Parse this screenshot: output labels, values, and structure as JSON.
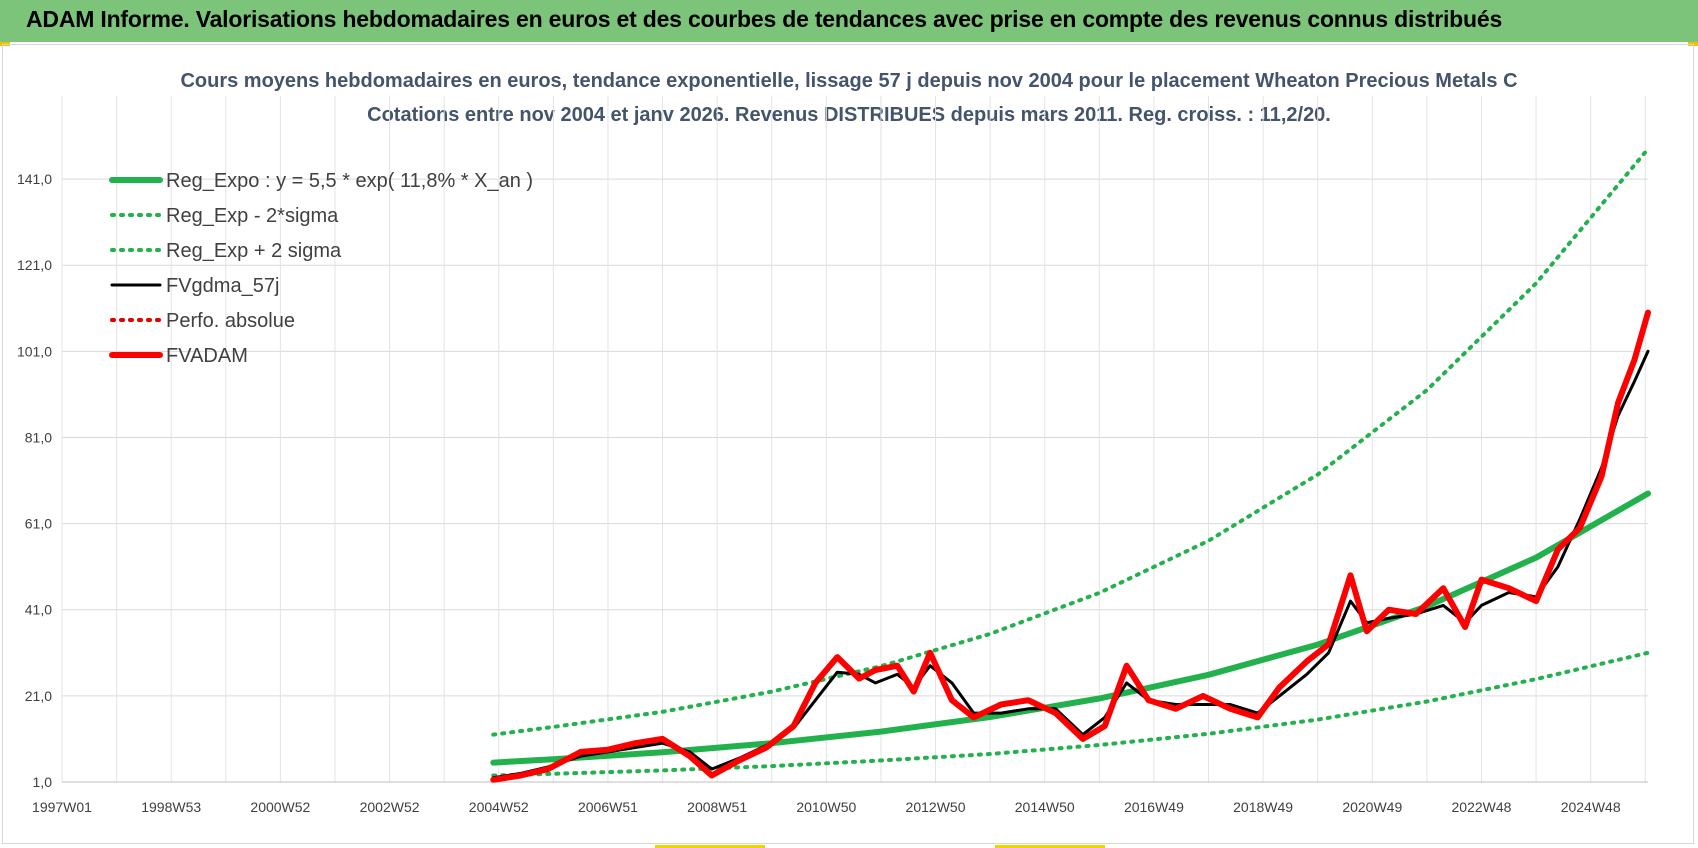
{
  "header": {
    "title": "ADAM Informe. Valorisations hebdomadaires en euros et des courbes de tendances avec prise en compte des revenus connus distribués"
  },
  "chart_data": {
    "type": "line",
    "title": "Cours moyens hebdomadaires en euros, tendance exponentielle, lissage 57 j depuis nov 2004 pour le placement Wheaton Precious Metals C",
    "subtitle": "Cotations entre nov 2004 et janv 2026. Revenus DISTRIBUES depuis mars 2011. Reg. croiss. : 11,2/20.",
    "x_tick_labels": [
      "1997W01",
      "1998W53",
      "2000W52",
      "2002W52",
      "2004W52",
      "2006W51",
      "2008W51",
      "2010W50",
      "2012W50",
      "2014W50",
      "2016W49",
      "2018W49",
      "2020W49",
      "2022W48",
      "2024W48"
    ],
    "x_tick_years": [
      1997.0,
      1999.0,
      2001.0,
      2003.0,
      2005.0,
      2007.0,
      2009.0,
      2011.0,
      2013.0,
      2015.0,
      2017.0,
      2019.0,
      2021.0,
      2023.0,
      2025.0
    ],
    "xlim": [
      1997.0,
      2026.05
    ],
    "y_ticks": [
      "1,0",
      "21,0",
      "41,0",
      "61,0",
      "81,0",
      "101,0",
      "121,0",
      "141,0"
    ],
    "ylim": [
      1,
      141
    ],
    "grid": true,
    "legend_position": "top-left",
    "legend": [
      {
        "name": "Reg_Expo : y = 5,5 * exp( 11,8% *  X_an )",
        "color": "#22b14c",
        "style": "solid-thick"
      },
      {
        "name": "Reg_Exp - 2*sigma",
        "color": "#22b14c",
        "style": "dotted"
      },
      {
        "name": "Reg_Exp + 2 sigma",
        "color": "#22b14c",
        "style": "dotted"
      },
      {
        "name": "FVgdma_57j",
        "color": "#000000",
        "style": "solid"
      },
      {
        "name": "Perfo. absolue",
        "color": "#e00000",
        "style": "dotted"
      },
      {
        "name": "FVADAM",
        "color": "#ff0000",
        "style": "solid-thick"
      }
    ],
    "series": [
      {
        "name": "Reg_Expo : y = 5,5 * exp( 11,8% *  X_an )",
        "x": [
          2004.9,
          2006.0,
          2008.0,
          2010.0,
          2012.0,
          2014.0,
          2016.0,
          2018.0,
          2020.0,
          2022.0,
          2024.0,
          2026.05
        ],
        "y": [
          5.5,
          6.3,
          7.9,
          10.0,
          12.7,
          16.1,
          20.4,
          25.9,
          32.9,
          41.8,
          53.1,
          68.0
        ]
      },
      {
        "name": "Reg_Exp - 2*sigma",
        "x": [
          2004.9,
          2006.0,
          2008.0,
          2010.0,
          2012.0,
          2014.0,
          2016.0,
          2018.0,
          2020.0,
          2022.0,
          2024.0,
          2026.05
        ],
        "y": [
          2.5,
          2.9,
          3.7,
          4.7,
          6.0,
          7.5,
          9.6,
          12.2,
          15.5,
          19.7,
          24.9,
          31.0
        ]
      },
      {
        "name": "Reg_Exp + 2 sigma",
        "x": [
          2004.9,
          2006.0,
          2008.0,
          2010.0,
          2012.0,
          2014.0,
          2016.0,
          2018.0,
          2020.0,
          2022.0,
          2024.0,
          2026.05
        ],
        "y": [
          12.0,
          13.8,
          17.3,
          22.0,
          27.9,
          35.4,
          44.9,
          57.0,
          72.4,
          92.0,
          116.8,
          148.0
        ]
      },
      {
        "name": "FVgdma_57j",
        "x": [
          2004.9,
          2005.4,
          2005.9,
          2006.5,
          2007.0,
          2007.5,
          2008.0,
          2008.5,
          2008.9,
          2009.4,
          2009.9,
          2010.4,
          2010.8,
          2011.2,
          2011.6,
          2011.9,
          2012.3,
          2012.6,
          2012.9,
          2013.3,
          2013.7,
          2014.2,
          2014.7,
          2015.2,
          2015.7,
          2016.1,
          2016.5,
          2016.9,
          2017.4,
          2017.9,
          2018.4,
          2018.9,
          2019.3,
          2019.8,
          2020.2,
          2020.6,
          2020.9,
          2021.3,
          2021.8,
          2022.3,
          2022.7,
          2023.0,
          2023.5,
          2024.0,
          2024.4,
          2024.8,
          2025.2,
          2025.5,
          2025.8,
          2026.05
        ],
        "y": [
          2.0,
          3.0,
          4.5,
          7.0,
          8.0,
          9.0,
          10.0,
          8.0,
          4.0,
          6.5,
          9.5,
          13.5,
          20.0,
          26.5,
          26.0,
          24.0,
          26.0,
          23.0,
          28.0,
          24.0,
          17.0,
          17.0,
          18.0,
          18.0,
          12.0,
          16.0,
          24.0,
          20.0,
          19.0,
          19.0,
          19.0,
          17.0,
          21.0,
          26.0,
          31.0,
          43.0,
          38.0,
          39.0,
          40.0,
          42.0,
          38.0,
          42.0,
          45.0,
          44.0,
          51.0,
          62.0,
          74.0,
          86.0,
          94.0,
          101.0
        ]
      },
      {
        "name": "FVADAM",
        "x": [
          2004.9,
          2005.4,
          2005.9,
          2006.5,
          2007.0,
          2007.5,
          2008.0,
          2008.5,
          2008.9,
          2009.4,
          2009.9,
          2010.4,
          2010.8,
          2011.2,
          2011.6,
          2011.9,
          2012.3,
          2012.6,
          2012.9,
          2013.3,
          2013.7,
          2014.2,
          2014.7,
          2015.2,
          2015.7,
          2016.1,
          2016.5,
          2016.9,
          2017.4,
          2017.9,
          2018.4,
          2018.9,
          2019.3,
          2019.8,
          2020.2,
          2020.6,
          2020.9,
          2021.3,
          2021.8,
          2022.3,
          2022.7,
          2023.0,
          2023.5,
          2024.0,
          2024.4,
          2024.8,
          2025.2,
          2025.5,
          2025.8,
          2026.05
        ],
        "y": [
          1.5,
          2.5,
          4.0,
          8.0,
          8.5,
          10.0,
          11.0,
          7.0,
          2.5,
          6.0,
          9.0,
          14.0,
          24.0,
          30.0,
          25.0,
          27.0,
          28.0,
          22.0,
          31.0,
          20.0,
          16.0,
          19.0,
          20.0,
          17.0,
          11.0,
          14.0,
          28.0,
          20.0,
          18.0,
          21.0,
          18.0,
          16.0,
          23.0,
          29.0,
          33.0,
          49.0,
          36.0,
          41.0,
          40.0,
          46.0,
          37.0,
          48.0,
          46.0,
          43.0,
          55.0,
          60.0,
          72.0,
          89.0,
          99.0,
          110.0
        ]
      }
    ]
  }
}
